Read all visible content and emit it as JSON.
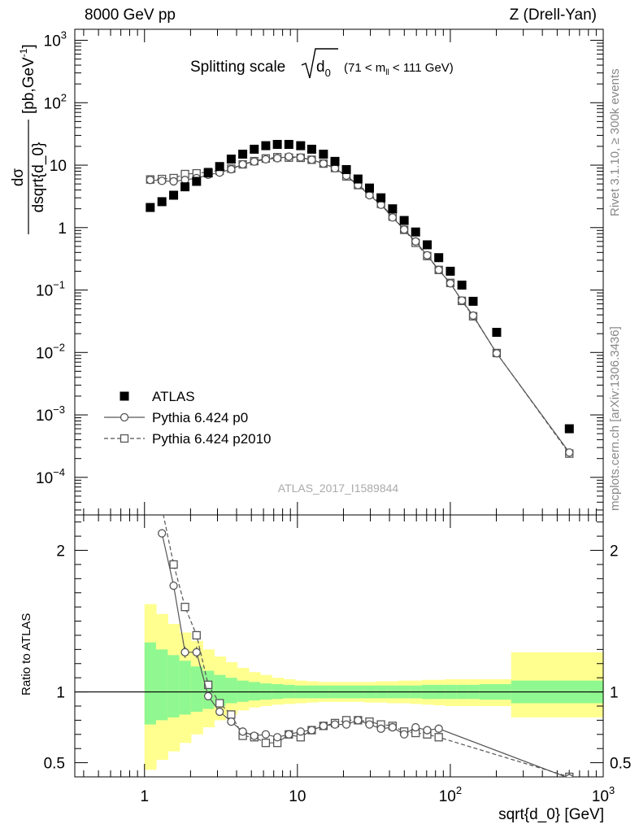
{
  "header": {
    "beam": "8000 GeV pp",
    "process": "Z (Drell-Yan)",
    "analysis_id": "ATLAS_2017_I1589844"
  },
  "sidebar": {
    "version": "Rivet 3.1.10, ≥ 300k events",
    "source": "mcplots.cern.ch [arXiv:1306.3436]"
  },
  "chart_data": [
    {
      "type": "scatter",
      "panel": "main",
      "title": "Splitting scale",
      "title_symbol": "d",
      "title_subscript": "0",
      "title_range": "(71 < m",
      "title_range_sub": "ll",
      "title_range_end": " < 111 GeV)",
      "ylabel_num": "dσ",
      "ylabel_den": "dsqrt{d_0}",
      "ylabel_unit": "[pb,GeV",
      "ylabel_unit_sup": "-1",
      "ylabel_unit_end": "]",
      "xscale": "log",
      "yscale": "log",
      "xlim": [
        0.35,
        1000
      ],
      "ylim": [
        2.5e-05,
        1500
      ],
      "ytick_values": [
        0.0001,
        0.001,
        0.01,
        0.1,
        1,
        10,
        100,
        1000
      ],
      "ytick_labels": [
        {
          "base": "10",
          "exp": "−4"
        },
        {
          "base": "10",
          "exp": "−3"
        },
        {
          "base": "10",
          "exp": "−2"
        },
        {
          "base": "10",
          "exp": "−1"
        },
        {
          "base": "1",
          "exp": ""
        },
        {
          "base": "10",
          "exp": ""
        },
        {
          "base": "10",
          "exp": "2"
        },
        {
          "base": "10",
          "exp": "3"
        }
      ],
      "legend_position": "bottom-left",
      "series": [
        {
          "name": "ATLAS",
          "style": "filled-square",
          "color": "#000000",
          "x": [
            1.09,
            1.3,
            1.55,
            1.84,
            2.19,
            2.61,
            3.1,
            3.69,
            4.39,
            5.22,
            6.21,
            7.39,
            8.79,
            10.5,
            12.4,
            14.8,
            17.6,
            20.9,
            24.9,
            29.6,
            35.2,
            41.9,
            49.9,
            59.3,
            70.6,
            84.0,
            100,
            119,
            141,
            201,
            600
          ],
          "y": [
            2.1,
            2.6,
            3.3,
            4.5,
            5.5,
            7.5,
            9.5,
            12.5,
            15.0,
            18.0,
            20.5,
            21.5,
            21.5,
            20.5,
            18.0,
            15.0,
            11.5,
            8.5,
            6.0,
            4.3,
            3.0,
            2.0,
            1.3,
            0.85,
            0.53,
            0.33,
            0.2,
            0.12,
            0.066,
            0.021,
            0.0006
          ]
        },
        {
          "name": "Pythia 6.424 p0",
          "style": "solid-open-circle",
          "color": "#555555",
          "x": [
            1.09,
            1.3,
            1.55,
            1.84,
            2.19,
            2.61,
            3.1,
            3.69,
            4.39,
            5.22,
            6.21,
            7.39,
            8.79,
            10.5,
            12.4,
            14.8,
            17.6,
            20.9,
            24.9,
            29.6,
            35.2,
            41.9,
            49.9,
            59.3,
            70.6,
            84.0,
            100,
            119,
            141,
            201,
            600
          ],
          "y": [
            5.8,
            5.6,
            5.5,
            5.8,
            6.2,
            7.0,
            7.6,
            8.6,
            10.3,
            11.4,
            12.4,
            12.9,
            13.7,
            13.3,
            12.2,
            10.6,
            8.9,
            6.8,
            4.8,
            3.3,
            2.32,
            1.45,
            0.93,
            0.6,
            0.36,
            0.21,
            0.128,
            0.068,
            0.039,
            0.0097,
            0.00025
          ]
        },
        {
          "name": "Pythia 6.424 p2010",
          "style": "dashed-open-square",
          "color": "#555555",
          "x": [
            1.09,
            1.3,
            1.55,
            1.84,
            2.19,
            2.61,
            3.1,
            3.69,
            4.39,
            5.22,
            6.21,
            7.39,
            8.79,
            10.5,
            12.4,
            14.8,
            17.6,
            20.9,
            24.9,
            29.6,
            35.2,
            41.9,
            49.9,
            59.3,
            70.6,
            84.0,
            100,
            119,
            141,
            201,
            600
          ],
          "y": [
            5.9,
            6.0,
            6.2,
            7.2,
            7.4,
            7.8,
            8.1,
            8.8,
            10.3,
            11.6,
            12.8,
            13.4,
            13.2,
            13.1,
            12.2,
            10.6,
            9.0,
            6.6,
            4.8,
            3.5,
            2.4,
            1.5,
            0.92,
            0.57,
            0.35,
            0.21,
            0.13,
            0.067,
            0.038,
            0.0098,
            0.00024
          ]
        }
      ]
    },
    {
      "type": "line",
      "panel": "ratio",
      "xlabel": "sqrt{d_0} [GeV]",
      "ylabel": "Ratio to ATLAS",
      "xscale": "log",
      "xlim": [
        0.35,
        1000
      ],
      "ylim": [
        0.4,
        2.25
      ],
      "xtick_values": [
        1,
        10,
        100,
        1000
      ],
      "xtick_labels": [
        {
          "base": "1",
          "exp": ""
        },
        {
          "base": "10",
          "exp": ""
        },
        {
          "base": "10",
          "exp": "2"
        },
        {
          "base": "10",
          "exp": "3"
        }
      ],
      "ytick_values": [
        0.5,
        1,
        2
      ],
      "ytick_labels": [
        "0.5",
        "1",
        "2"
      ],
      "reference_line": 1,
      "bands": {
        "edges": [
          1.0,
          1.19,
          1.42,
          1.69,
          2.01,
          2.4,
          2.85,
          3.39,
          4.03,
          4.8,
          5.71,
          6.79,
          8.08,
          9.62,
          11.4,
          13.6,
          16.2,
          19.3,
          22.9,
          27.3,
          32.5,
          38.6,
          46,
          54.7,
          65.1,
          77.5,
          92.2,
          110,
          130,
          155,
          250,
          1000
        ],
        "stat_lo": [
          0.77,
          0.8,
          0.82,
          0.84,
          0.86,
          0.88,
          0.9,
          0.92,
          0.93,
          0.94,
          0.945,
          0.95,
          0.955,
          0.955,
          0.955,
          0.955,
          0.955,
          0.955,
          0.955,
          0.955,
          0.955,
          0.955,
          0.955,
          0.955,
          0.95,
          0.95,
          0.95,
          0.95,
          0.95,
          0.945,
          0.92
        ],
        "stat_hi": [
          1.35,
          1.3,
          1.26,
          1.22,
          1.18,
          1.15,
          1.12,
          1.1,
          1.08,
          1.07,
          1.06,
          1.055,
          1.05,
          1.045,
          1.045,
          1.045,
          1.045,
          1.045,
          1.045,
          1.045,
          1.045,
          1.045,
          1.045,
          1.045,
          1.05,
          1.05,
          1.05,
          1.05,
          1.05,
          1.055,
          1.08
        ],
        "total_lo": [
          0.45,
          0.52,
          0.58,
          0.64,
          0.7,
          0.75,
          0.8,
          0.84,
          0.87,
          0.89,
          0.9,
          0.91,
          0.915,
          0.92,
          0.925,
          0.93,
          0.93,
          0.93,
          0.93,
          0.925,
          0.925,
          0.92,
          0.92,
          0.915,
          0.91,
          0.905,
          0.9,
          0.9,
          0.9,
          0.9,
          0.82
        ],
        "total_hi": [
          1.62,
          1.55,
          1.48,
          1.42,
          1.36,
          1.3,
          1.25,
          1.21,
          1.17,
          1.14,
          1.12,
          1.1,
          1.09,
          1.08,
          1.075,
          1.07,
          1.07,
          1.07,
          1.07,
          1.07,
          1.075,
          1.075,
          1.08,
          1.08,
          1.085,
          1.085,
          1.09,
          1.09,
          1.09,
          1.09,
          1.28
        ],
        "stat_color": "#90f890",
        "total_color": "#ffff90"
      },
      "series": [
        {
          "name": "Pythia 6.424 p0",
          "style": "solid-open-circle",
          "x": [
            1.3,
            1.55,
            1.84,
            2.19,
            2.61,
            3.1,
            3.69,
            4.39,
            5.22,
            6.21,
            7.39,
            8.79,
            10.5,
            12.4,
            14.8,
            17.6,
            20.9,
            24.9,
            29.6,
            35.2,
            41.9,
            49.9,
            59.3,
            70.6,
            84.0,
            600
          ],
          "y": [
            2.12,
            1.75,
            1.28,
            1.28,
            0.97,
            0.86,
            0.79,
            0.72,
            0.69,
            0.7,
            0.68,
            0.7,
            0.72,
            0.73,
            0.76,
            0.77,
            0.77,
            0.8,
            0.77,
            0.74,
            0.75,
            0.7,
            0.75,
            0.73,
            0.74,
            0.39
          ],
          "yerr": [
            0.03,
            0.03,
            0.04,
            0.04,
            0.02,
            0.01,
            0.01,
            0.01,
            0.01,
            0.01,
            0.01,
            0.01,
            0.01,
            0.01,
            0.01,
            0.01,
            0.01,
            0.01,
            0.01,
            0.01,
            0.01,
            0.01,
            0.02,
            0.02,
            0.03,
            0.05
          ]
        },
        {
          "name": "Pythia 6.424 p2010",
          "style": "dashed-open-square",
          "x": [
            1.3,
            1.55,
            1.84,
            2.19,
            2.61,
            3.1,
            3.69,
            4.39,
            5.22,
            6.21,
            7.39,
            8.79,
            10.5,
            12.4,
            14.8,
            17.6,
            20.9,
            24.9,
            29.6,
            35.2,
            41.9,
            49.9,
            59.3,
            70.6,
            84.0,
            600
          ],
          "y": [
            2.3,
            1.9,
            1.6,
            1.4,
            1.05,
            0.92,
            0.84,
            0.69,
            0.68,
            0.64,
            0.64,
            0.7,
            0.68,
            0.73,
            0.76,
            0.78,
            0.8,
            0.8,
            0.79,
            0.77,
            0.76,
            0.72,
            0.71,
            0.7,
            0.68,
            0.4
          ],
          "yerr": [
            0.03,
            0.03,
            0.03,
            0.03,
            0.02,
            0.01,
            0.01,
            0.01,
            0.01,
            0.01,
            0.01,
            0.01,
            0.01,
            0.01,
            0.01,
            0.01,
            0.01,
            0.01,
            0.01,
            0.01,
            0.01,
            0.01,
            0.02,
            0.02,
            0.02,
            0.05
          ]
        }
      ]
    }
  ]
}
